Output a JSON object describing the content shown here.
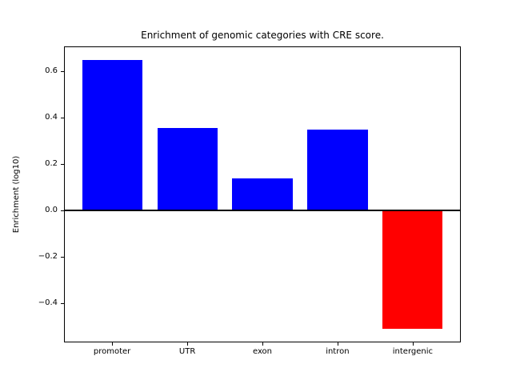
{
  "chart_data": {
    "type": "bar",
    "title": "Enrichment of genomic categories with CRE score.",
    "xlabel": "",
    "ylabel": "Enrichment (log10)",
    "categories": [
      "promoter",
      "UTR",
      "exon",
      "intron",
      "intergenic"
    ],
    "values": [
      0.65,
      0.355,
      0.14,
      0.35,
      -0.51
    ],
    "bar_colors": [
      "#0000ff",
      "#0000ff",
      "#0000ff",
      "#0000ff",
      "#ff0000"
    ],
    "positive_color": "#0000ff",
    "negative_color": "#ff0000",
    "yticks": [
      0.6,
      0.4,
      0.2,
      0.0,
      -0.2,
      -0.4
    ],
    "ytick_labels": [
      "0.6",
      "0.4",
      "0.2",
      "0.0",
      "−0.2",
      "−0.4"
    ],
    "ylim": [
      -0.568,
      0.708
    ],
    "xlim": [
      -0.64,
      4.64
    ],
    "bar_width": 0.8,
    "grid": false,
    "zero_line": true,
    "background_color": "#ffffff",
    "spine_color": "#000000"
  }
}
